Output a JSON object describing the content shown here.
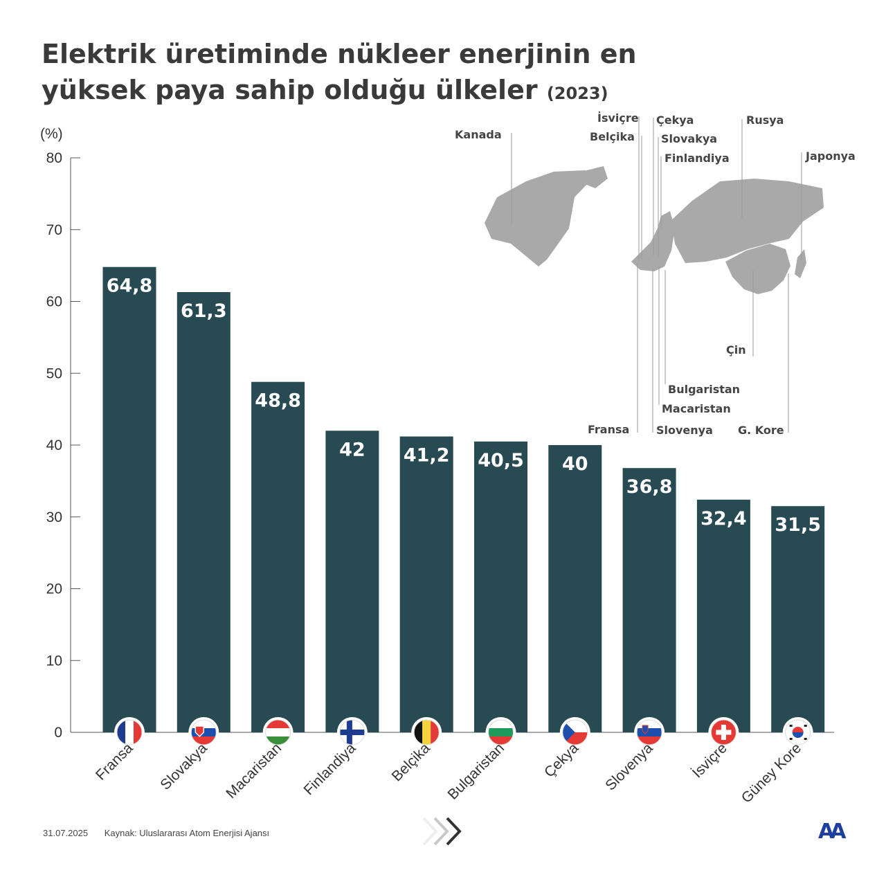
{
  "title": {
    "main": "Elektrik üretiminde nükleer enerjinin en yüksek paya sahip olduğu ülkeler",
    "year": "(2023)"
  },
  "chart_data": {
    "type": "bar",
    "title": "Elektrik üretiminde nükleer enerjinin en yüksek paya sahip olduğu ülkeler (2023)",
    "ylabel": "(%)",
    "xlabel": "",
    "ylim": [
      0,
      80
    ],
    "yticks": [
      "0",
      "10",
      "20",
      "30",
      "40",
      "50",
      "60",
      "70",
      "80"
    ],
    "categories": [
      "Fransa",
      "Slovakya",
      "Macaristan",
      "Finlandiya",
      "Belçika",
      "Bulgaristan",
      "Çekya",
      "Slovenya",
      "İsviçre",
      "Güney Kore"
    ],
    "values": [
      64.8,
      61.3,
      48.8,
      42,
      41.2,
      40.5,
      40,
      36.8,
      32.4,
      31.5
    ],
    "value_labels": [
      "64,8",
      "61,3",
      "48,8",
      "42",
      "41,2",
      "40,5",
      "40",
      "36,8",
      "32,4",
      "31,5"
    ],
    "bar_color": "#284a52",
    "grid": false
  },
  "map": {
    "labels": [
      "Kanada",
      "İsviçre",
      "Belçika",
      "Çekya",
      "Slovakya",
      "Finlandiya",
      "Rusya",
      "Japonya",
      "Çin",
      "Bulgaristan",
      "Macaristan",
      "Fransa",
      "Slovenya",
      "G. Kore"
    ],
    "land_color": "#a9a9a9"
  },
  "flags": [
    "france-flag",
    "slovakia-flag",
    "hungary-flag",
    "finland-flag",
    "belgium-flag",
    "bulgaria-flag",
    "czechia-flag",
    "slovenia-flag",
    "switzerland-flag",
    "south-korea-flag"
  ],
  "footer": {
    "date": "31.07.2025",
    "source": "Kaynak: Uluslararası Atom Enerjisi Ajansı"
  },
  "logo": {
    "text": "AA",
    "color": "#1f3fa0"
  }
}
